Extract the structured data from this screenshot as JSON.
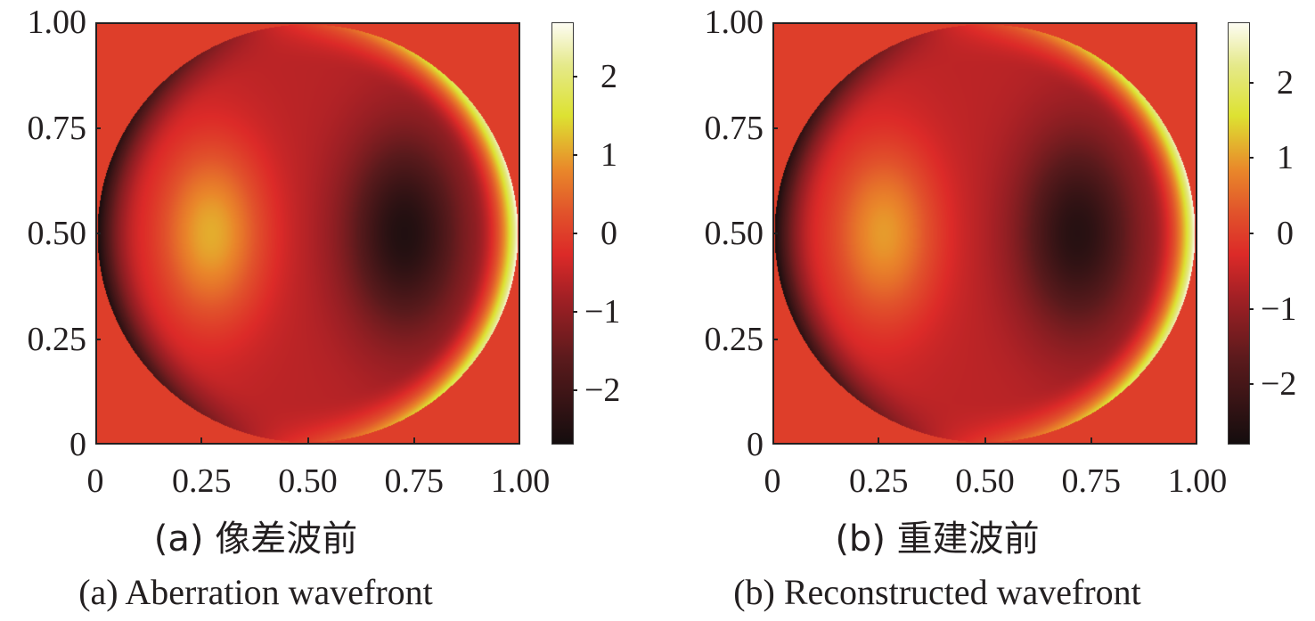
{
  "chart_data": [
    {
      "type": "heatmap",
      "id": "a",
      "title": "",
      "caption_zh": "(a) 像差波前",
      "caption_en": "(a) Aberration wavefront",
      "xlabel": "",
      "ylabel": "",
      "xlim": [
        0,
        1
      ],
      "ylim": [
        0,
        1
      ],
      "xticks": [
        "0",
        "0.25",
        "0.50",
        "0.75",
        "1.00"
      ],
      "yticks": [
        "0",
        "0.25",
        "0.50",
        "0.75",
        "1.00"
      ],
      "xtick_values": [
        0,
        0.25,
        0.5,
        0.75,
        1.0
      ],
      "ytick_values": [
        0,
        0.25,
        0.5,
        0.75,
        1.0
      ],
      "colorbar": {
        "colormap": "hot",
        "range": [
          -2.7,
          2.7
        ],
        "ticks": [
          "2",
          "1",
          "0",
          "−1",
          "−2"
        ],
        "tick_values": [
          2,
          1,
          0,
          -1,
          -2
        ]
      },
      "background_value": 0,
      "aperture": {
        "shape": "circle",
        "center": [
          0.5,
          0.5
        ],
        "radius": 0.5
      },
      "wavefront_model": {
        "description": "Lobed aberration: positive peak near x=0.27, negative trough near x=0.73, steep rim",
        "peak": {
          "x": 0.27,
          "y": 0.5,
          "value": 1.7
        },
        "trough": {
          "x": 0.73,
          "y": 0.5,
          "value": -1.9
        },
        "rim_left_value": -2.7,
        "rim_right_value": 2.7
      }
    },
    {
      "type": "heatmap",
      "id": "b",
      "title": "",
      "caption_zh": "(b) 重建波前",
      "caption_en": "(b) Reconstructed wavefront",
      "xlabel": "",
      "ylabel": "",
      "xlim": [
        0,
        1
      ],
      "ylim": [
        0,
        1
      ],
      "xticks": [
        "0",
        "0.25",
        "0.50",
        "0.75",
        "1.00"
      ],
      "yticks": [
        "0",
        "0.25",
        "0.50",
        "0.75",
        "1.00"
      ],
      "xtick_values": [
        0,
        0.25,
        0.5,
        0.75,
        1.0
      ],
      "ytick_values": [
        0,
        0.25,
        0.5,
        0.75,
        1.0
      ],
      "colorbar": {
        "colormap": "hot",
        "range": [
          -2.8,
          2.8
        ],
        "ticks": [
          "2",
          "1",
          "0",
          "−1",
          "−2"
        ],
        "tick_values": [
          2,
          1,
          0,
          -1,
          -2
        ]
      },
      "background_value": 0,
      "aperture": {
        "shape": "circle",
        "center": [
          0.5,
          0.5
        ],
        "radius": 0.5
      },
      "wavefront_model": {
        "description": "Reconstructed lobed aberration closely matching (a)",
        "peak": {
          "x": 0.26,
          "y": 0.5,
          "value": 1.6
        },
        "trough": {
          "x": 0.72,
          "y": 0.5,
          "value": -1.9
        },
        "rim_left_value": -2.8,
        "rim_right_value": 2.8
      }
    }
  ],
  "colormap_stops": [
    {
      "value": 0.0,
      "color": "#140d0e"
    },
    {
      "value": 0.2,
      "color": "#5a1a1c"
    },
    {
      "value": 0.35,
      "color": "#a32025"
    },
    {
      "value": 0.45,
      "color": "#dc2a28"
    },
    {
      "value": 0.55,
      "color": "#e1532b"
    },
    {
      "value": 0.65,
      "color": "#e9872a"
    },
    {
      "value": 0.78,
      "color": "#dde232"
    },
    {
      "value": 0.9,
      "color": "#e5e98a"
    },
    {
      "value": 1.0,
      "color": "#fdfcf2"
    }
  ]
}
